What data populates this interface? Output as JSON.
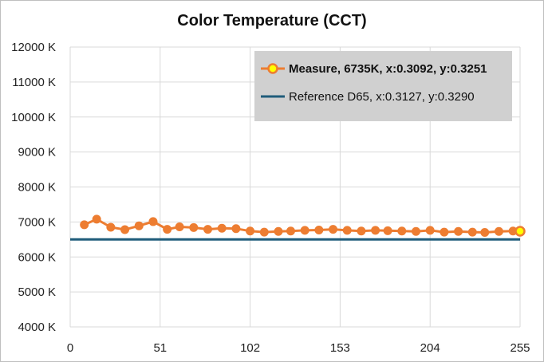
{
  "chart_data": {
    "type": "line",
    "title": "Color Temperature (CCT)",
    "xlabel": "",
    "ylabel": "",
    "xlim": [
      0,
      255
    ],
    "ylim": [
      4000,
      12000
    ],
    "x_ticks": [
      0,
      51,
      102,
      153,
      204,
      255
    ],
    "y_ticks": [
      4000,
      5000,
      6000,
      7000,
      8000,
      9000,
      10000,
      11000,
      12000
    ],
    "y_tick_labels": [
      "4000 K",
      "5000 K",
      "6000 K",
      "7000 K",
      "8000 K",
      "9000 K",
      "10000 K",
      "11000 K",
      "12000 K"
    ],
    "grid": true,
    "legend_position": "top-right",
    "series": [
      {
        "name": "Measure, 6735K, x:0.3092, y:0.3251",
        "color": "#ED7D31",
        "marker": "circle",
        "x": [
          8,
          15,
          23,
          31,
          39,
          47,
          55,
          62,
          70,
          78,
          86,
          94,
          102,
          110,
          118,
          125,
          133,
          141,
          149,
          157,
          165,
          173,
          180,
          188,
          196,
          204,
          212,
          220,
          228,
          235,
          243,
          251,
          255
        ],
        "values": [
          6920,
          7080,
          6850,
          6780,
          6890,
          7010,
          6790,
          6860,
          6840,
          6790,
          6820,
          6810,
          6740,
          6710,
          6730,
          6740,
          6760,
          6770,
          6790,
          6760,
          6740,
          6760,
          6750,
          6740,
          6730,
          6760,
          6710,
          6730,
          6710,
          6700,
          6730,
          6740,
          6735
        ]
      },
      {
        "name": "Reference D65, x:0.3127, y:0.3290",
        "color": "#1F5C7A",
        "marker": "none",
        "x": [
          0,
          255
        ],
        "values": [
          6500,
          6500
        ]
      }
    ]
  },
  "colors": {
    "highlight_marker_fill": "#FFFF00",
    "legend_background": "#D0D0D0"
  }
}
